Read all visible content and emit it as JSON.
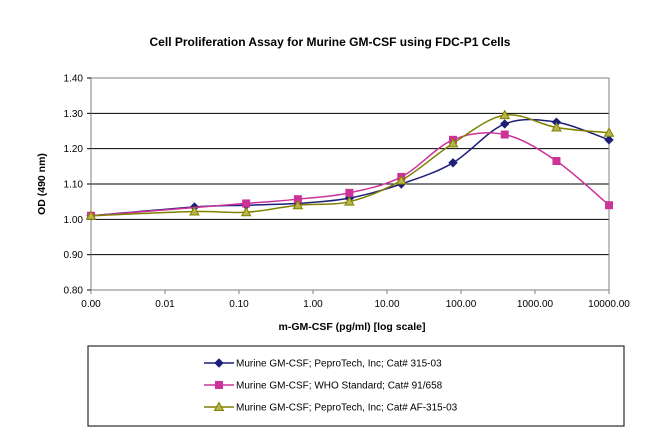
{
  "chart_data": {
    "type": "line",
    "title": "Cell Proliferation Assay for Murine GM-CSF using FDC-P1 Cells",
    "xlabel": "m-GM-CSF (pg/ml) [log scale]",
    "ylabel": "OD (490 nm)",
    "x_scale": "log",
    "x_tick_labels": [
      "0.00",
      "0.01",
      "0.10",
      "1.00",
      "10.00",
      "100.00",
      "1000.00",
      "10000.00"
    ],
    "x_tick_values": [
      0.001,
      0.01,
      0.1,
      1,
      10,
      100,
      1000,
      10000
    ],
    "y_tick_labels": [
      "0.80",
      "0.90",
      "1.00",
      "1.10",
      "1.20",
      "1.30",
      "1.40"
    ],
    "ylim": [
      0.8,
      1.4
    ],
    "xlim": [
      0.001,
      10000
    ],
    "grid": "horizontal",
    "legend_position": "bottom",
    "series": [
      {
        "name": "Murine GM-CSF; PeproTech, Inc; Cat# 315-03",
        "color": "#1f1f7a",
        "marker": "diamond",
        "x": [
          0.001,
          0.025,
          0.125,
          0.625,
          3.1,
          15.6,
          78,
          390,
          1950,
          10000
        ],
        "y": [
          1.01,
          1.035,
          1.04,
          1.045,
          1.06,
          1.1,
          1.16,
          1.27,
          1.275,
          1.225
        ]
      },
      {
        "name": "Murine GM-CSF; WHO Standard; Cat# 91/658",
        "color": "#cc3399",
        "marker": "square",
        "x": [
          0.001,
          0.125,
          0.625,
          3.1,
          15.6,
          78,
          390,
          1950,
          10000
        ],
        "y": [
          1.01,
          1.045,
          1.057,
          1.075,
          1.12,
          1.225,
          1.24,
          1.165,
          1.04
        ]
      },
      {
        "name": "Murine GM-CSF; PeproTech, Inc; Cat# AF-315-03",
        "color": "#808000",
        "marker": "triangle",
        "x": [
          0.001,
          0.025,
          0.125,
          0.625,
          3.1,
          15.6,
          78,
          390,
          1950,
          10000
        ],
        "y": [
          1.01,
          1.022,
          1.02,
          1.04,
          1.05,
          1.11,
          1.215,
          1.295,
          1.26,
          1.245
        ]
      }
    ]
  }
}
